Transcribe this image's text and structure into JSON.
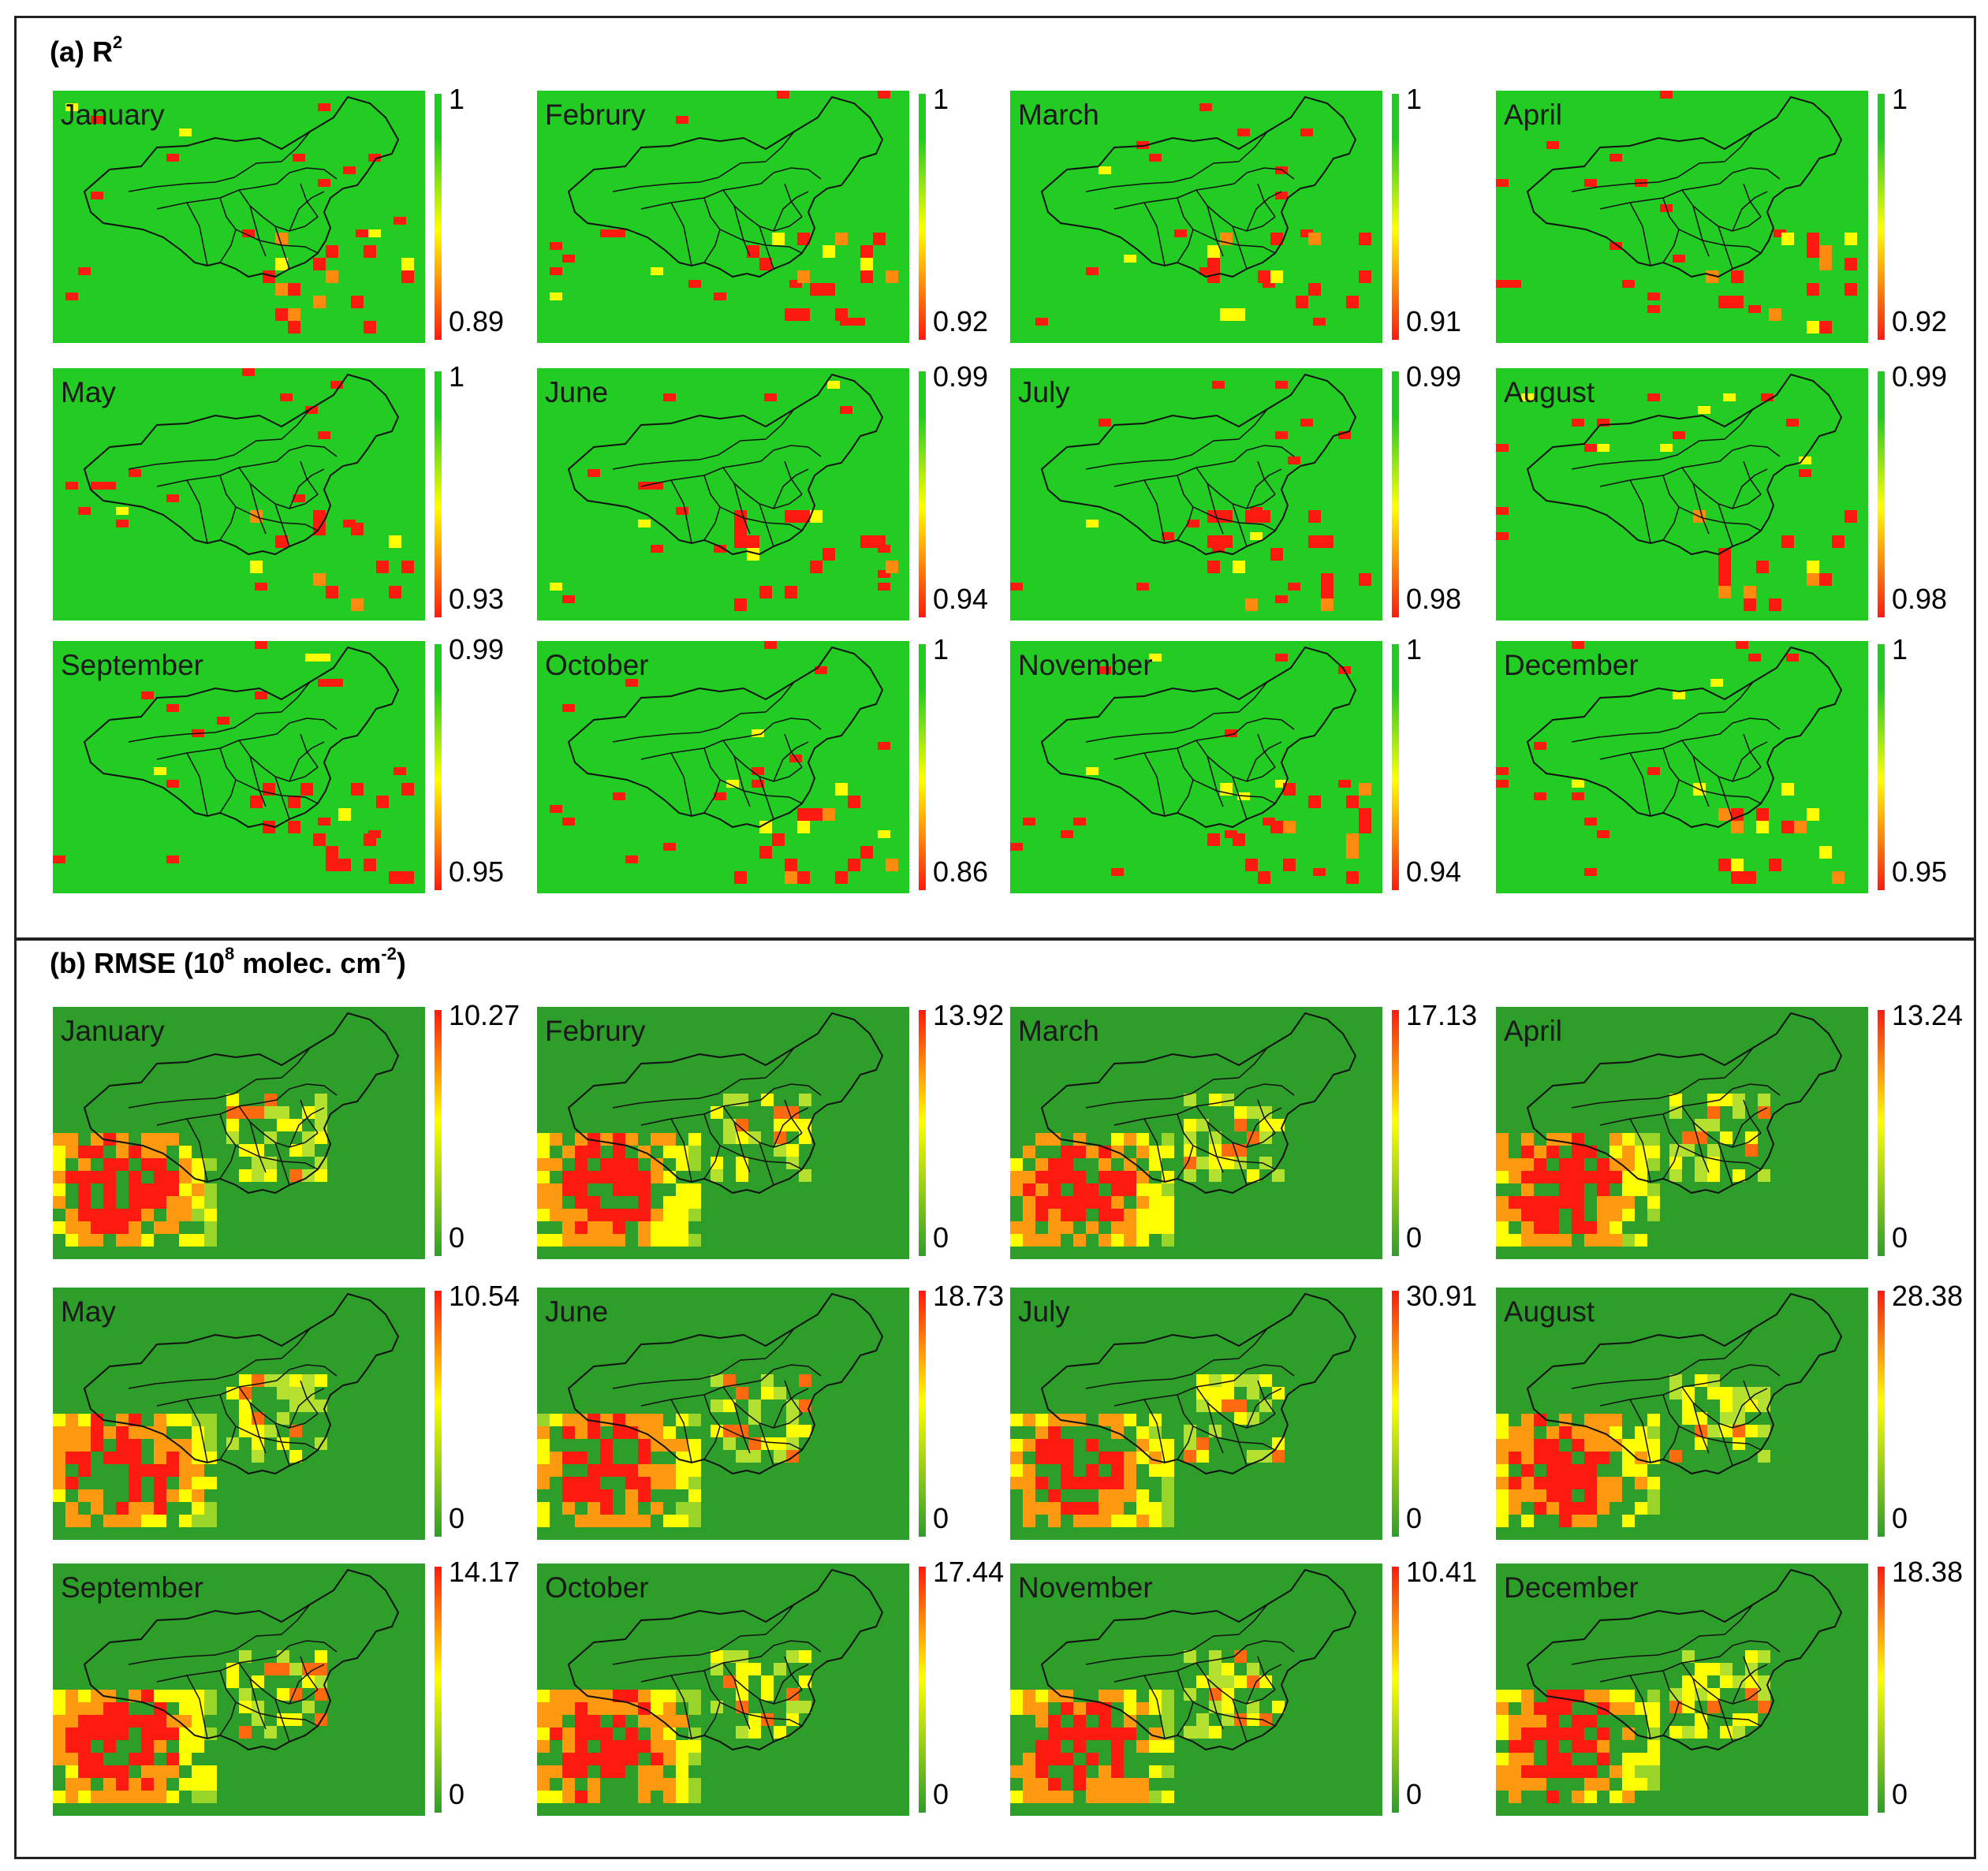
{
  "panels": [
    {
      "id": "r2",
      "label_main": "(a) R",
      "label_sup": "2",
      "label_rest": "",
      "months": [
        {
          "name": "January",
          "max": "1",
          "min": "0.89"
        },
        {
          "name": "Februry",
          "max": "1",
          "min": "0.92"
        },
        {
          "name": "March",
          "max": "1",
          "min": "0.91"
        },
        {
          "name": "April",
          "max": "1",
          "min": "0.92"
        },
        {
          "name": "May",
          "max": "1",
          "min": "0.93"
        },
        {
          "name": "June",
          "max": "0.99",
          "min": "0.94"
        },
        {
          "name": "July",
          "max": "0.99",
          "min": "0.98"
        },
        {
          "name": "August",
          "max": "0.99",
          "min": "0.98"
        },
        {
          "name": "September",
          "max": "0.99",
          "min": "0.95"
        },
        {
          "name": "October",
          "max": "1",
          "min": "0.86"
        },
        {
          "name": "November",
          "max": "1",
          "min": "0.94"
        },
        {
          "name": "December",
          "max": "1",
          "min": "0.95"
        }
      ]
    },
    {
      "id": "rmse",
      "label_main": "(b) RMSE (10",
      "label_sup": "8",
      "label_rest": " molec. cm",
      "label_sup2": "-2",
      "label_end": ")",
      "months": [
        {
          "name": "January",
          "max": "10.27",
          "min": "0"
        },
        {
          "name": "Februry",
          "max": "13.92",
          "min": "0"
        },
        {
          "name": "March",
          "max": "17.13",
          "min": "0"
        },
        {
          "name": "April",
          "max": "13.24",
          "min": "0"
        },
        {
          "name": "May",
          "max": "10.54",
          "min": "0"
        },
        {
          "name": "June",
          "max": "18.73",
          "min": "0"
        },
        {
          "name": "July",
          "max": "30.91",
          "min": "0"
        },
        {
          "name": "August",
          "max": "28.38",
          "min": "0"
        },
        {
          "name": "September",
          "max": "14.17",
          "min": "0"
        },
        {
          "name": "October",
          "max": "17.44",
          "min": "0"
        },
        {
          "name": "November",
          "max": "10.41",
          "min": "0"
        },
        {
          "name": "December",
          "max": "18.38",
          "min": "0"
        }
      ]
    }
  ],
  "colors": {
    "r2_background": "#22cc22",
    "rmse_background": "#2e9e2a",
    "high": "#ff1a10",
    "mid": "#ffff00",
    "outline": "#111111"
  }
}
